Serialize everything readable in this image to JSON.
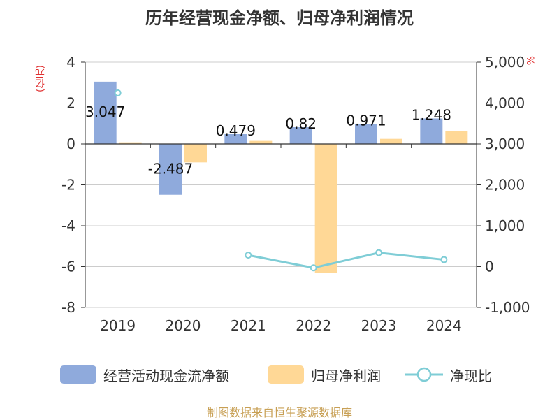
{
  "title": "历年经营现金净额、归母净利润情况",
  "unit_left": "(亿元)",
  "unit_right": "%",
  "source": "制图数据来自恒生聚源数据库",
  "colors": {
    "bar1": "#8faadc",
    "bar2": "#ffd896",
    "line": "#7fcdd6",
    "axis": "#333333",
    "grid": "#cccccc",
    "unit": "#e03030",
    "source": "#c8a055"
  },
  "chart_data": {
    "type": "bar",
    "categories": [
      "2019",
      "2020",
      "2021",
      "2022",
      "2023",
      "2024"
    ],
    "series": [
      {
        "name": "经营活动现金流净额",
        "type": "bar",
        "axis": "left",
        "values": [
          3.047,
          -2.487,
          0.479,
          0.82,
          0.971,
          1.248
        ],
        "labels": [
          "3.047",
          "-2.487",
          "0.479",
          "0.82",
          "0.971",
          "1.248"
        ]
      },
      {
        "name": "归母净利润",
        "type": "bar",
        "axis": "left",
        "values": [
          0.08,
          -0.9,
          0.15,
          -6.3,
          0.25,
          0.65
        ]
      },
      {
        "name": "净现比",
        "type": "line",
        "axis": "right",
        "values": [
          4250,
          null,
          280,
          -30,
          340,
          170
        ]
      }
    ],
    "y_left": {
      "min": -8,
      "max": 4,
      "ticks": [
        4,
        2,
        0,
        -2,
        -4,
        -6,
        -8
      ],
      "tick_labels": [
        "4",
        "2",
        "0",
        "-2",
        "-4",
        "-6",
        "-8"
      ]
    },
    "y_right": {
      "min": -1000,
      "max": 5000,
      "ticks": [
        5000,
        4000,
        3000,
        2000,
        1000,
        0,
        -1000
      ],
      "tick_labels": [
        "5,000",
        "4,000",
        "3,000",
        "2,000",
        "1,000",
        "0",
        "-1,000"
      ]
    },
    "grid": true,
    "legend_position": "bottom"
  }
}
